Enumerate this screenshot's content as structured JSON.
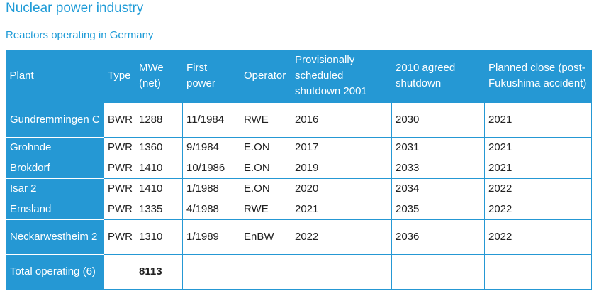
{
  "page": {
    "title": "Nuclear power industry",
    "subtitle": "Reactors operating in Germany"
  },
  "table": {
    "headers": [
      "Plant",
      "Type",
      "MWe (net)",
      "First power",
      "Operator",
      "Provisionally scheduled shutdown 2001",
      "2010 agreed shutdown",
      "Planned close (post-Fukushima accident)"
    ],
    "rows": [
      [
        "Gundremmingen C",
        "BWR",
        "1288",
        "11/1984",
        "RWE",
        "2016",
        "2030",
        "2021"
      ],
      [
        "Grohnde",
        "PWR",
        "1360",
        "9/1984",
        "E.ON",
        "2017",
        "2031",
        "2021"
      ],
      [
        "Brokdorf",
        "PWR",
        "1410",
        "10/1986",
        "E.ON",
        "2019",
        "2033",
        "2021"
      ],
      [
        "Isar 2",
        "PWR",
        "1410",
        "1/1988",
        "E.ON",
        "2020",
        "2034",
        "2022"
      ],
      [
        "Emsland",
        "PWR",
        "1335",
        "4/1988",
        "RWE",
        "2021",
        "2035",
        "2022"
      ],
      [
        "Neckarwestheim 2",
        "PWR",
        "1310",
        "1/1989",
        "EnBW",
        "2022",
        "2036",
        "2022"
      ]
    ],
    "total": {
      "label": "Total operating (6)",
      "mwe": "8113"
    }
  },
  "colors": {
    "accent": "#1e9bd7",
    "header_bg": "#2598d4",
    "text": "#222222"
  }
}
